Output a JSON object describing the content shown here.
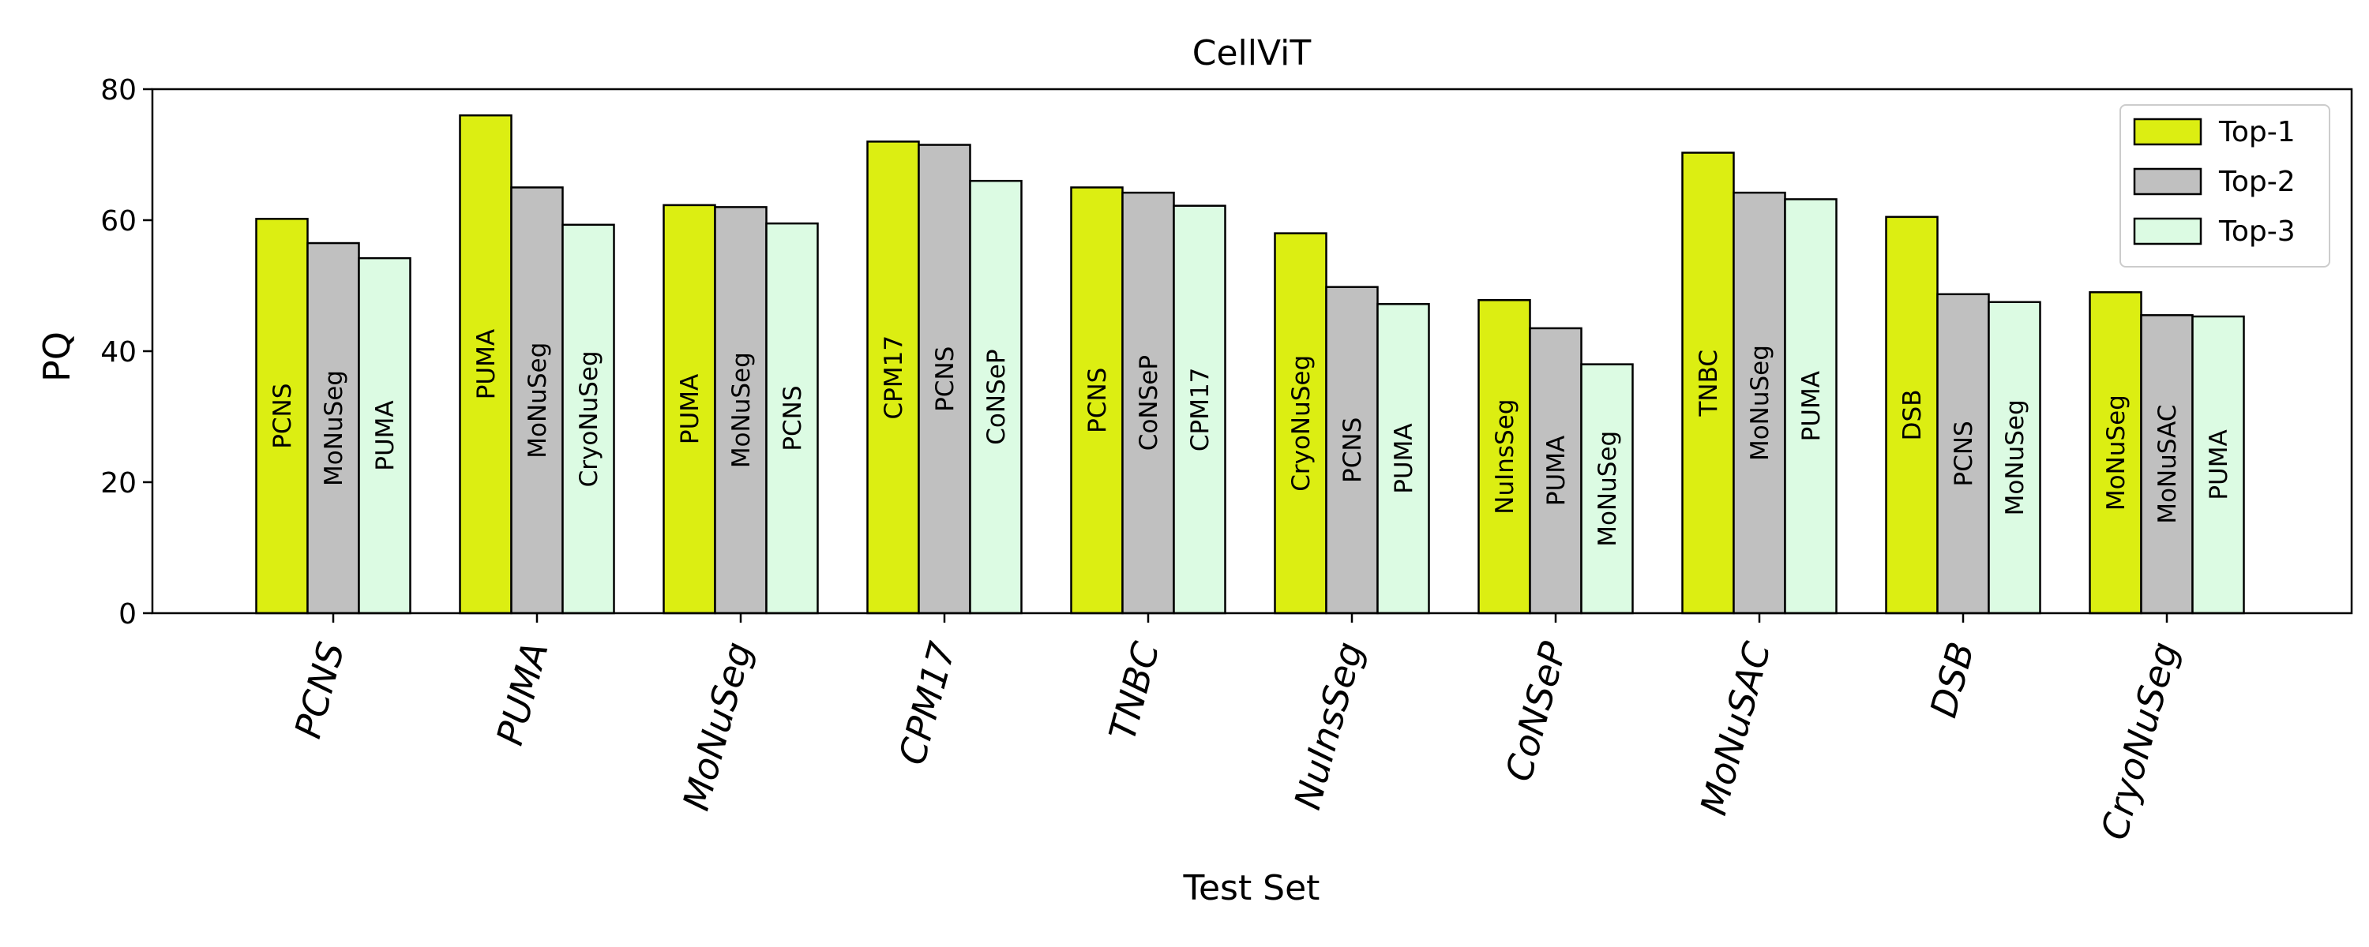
{
  "chart_data": {
    "type": "bar",
    "title": "CellViT",
    "xlabel": "Test Set",
    "ylabel": "PQ",
    "ylim": [
      0,
      80
    ],
    "yticks": [
      0,
      20,
      40,
      60,
      80
    ],
    "grid": false,
    "legend_position": "top-right",
    "categories": [
      "PCNS",
      "PUMA",
      "MoNuSeg",
      "CPM17",
      "TNBC",
      "NuInsSeg",
      "CoNSeP",
      "MoNuSAC",
      "DSB",
      "CryoNuSeg"
    ],
    "series": [
      {
        "name": "Top-1",
        "color": "#dcee12",
        "values": [
          60.2,
          76.0,
          62.3,
          72.0,
          65.0,
          58.0,
          47.8,
          70.3,
          60.5,
          49.0
        ],
        "bar_labels": [
          "PCNS",
          "PUMA",
          "PUMA",
          "CPM17",
          "PCNS",
          "CryoNuSeg",
          "NuInsSeg",
          "TNBC",
          "DSB",
          "MoNuSeg"
        ]
      },
      {
        "name": "Top-2",
        "color": "#c0c0c0",
        "values": [
          56.5,
          65.0,
          62.0,
          71.5,
          64.2,
          49.8,
          43.5,
          64.2,
          48.7,
          45.5
        ],
        "bar_labels": [
          "MoNuSeg",
          "MoNuSeg",
          "MoNuSeg",
          "PCNS",
          "CoNSeP",
          "PCNS",
          "PUMA",
          "MoNuSeg",
          "PCNS",
          "MoNuSAC"
        ]
      },
      {
        "name": "Top-3",
        "color": "#dcfbe3",
        "values": [
          54.2,
          59.3,
          59.5,
          66.0,
          62.2,
          47.2,
          38.0,
          63.2,
          47.5,
          45.3
        ],
        "bar_labels": [
          "PUMA",
          "CryoNuSeg",
          "PCNS",
          "CoNSeP",
          "CPM17",
          "PUMA",
          "MoNuSeg",
          "PUMA",
          "MoNuSeg",
          "PUMA"
        ]
      }
    ]
  }
}
